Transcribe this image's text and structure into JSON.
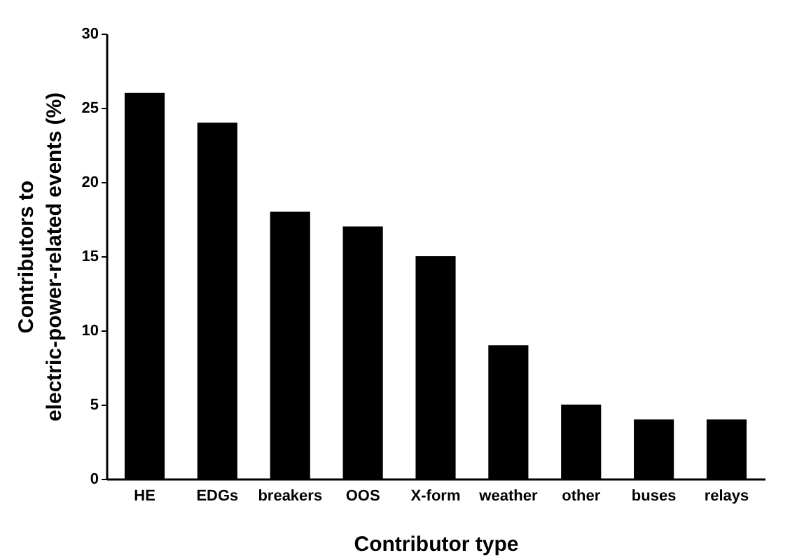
{
  "chart_data": {
    "type": "bar",
    "xlabel": "Contributor type",
    "ylabel": "Contributors to\nelectric-power-related events (%)",
    "categories": [
      "HE",
      "EDGs",
      "breakers",
      "OOS",
      "X-form",
      "weather",
      "other",
      "buses",
      "relays"
    ],
    "values": [
      26,
      24,
      18,
      17,
      15,
      9,
      5,
      4,
      4
    ],
    "color": "#000000",
    "ylim": [
      0,
      30
    ],
    "yticks": [
      0,
      5,
      10,
      15,
      20,
      25,
      30
    ],
    "grid": false
  }
}
